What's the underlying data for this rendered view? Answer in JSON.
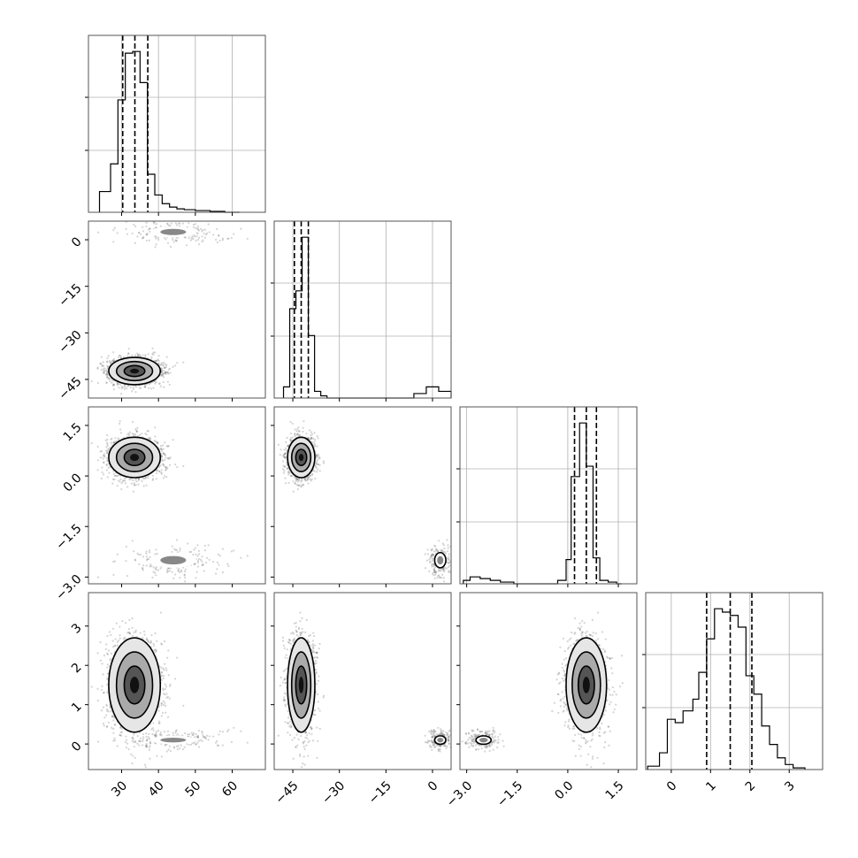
{
  "chart_data": {
    "type": "corner",
    "grid": true,
    "colors": {
      "ink": "#000000",
      "point": "#555555",
      "grid": "#b0b0b0"
    },
    "parameters": [
      {
        "ticks": [
          30,
          40,
          50,
          60
        ],
        "tick_labels": [
          "30",
          "40",
          "50",
          "60"
        ],
        "range": [
          21,
          69
        ],
        "quantiles": [
          30.3,
          33.6,
          37.1
        ]
      },
      {
        "ticks": [
          -45,
          -30,
          -15,
          0
        ],
        "tick_labels": [
          "−45",
          "−30",
          "−15",
          "0"
        ],
        "range": [
          -51,
          6
        ],
        "quantiles": [
          -44.5,
          -42.3,
          -40.0
        ]
      },
      {
        "ticks": [
          -3.0,
          -1.5,
          0.0,
          1.5
        ],
        "tick_labels": [
          "−3.0",
          "−1.5",
          "0.0",
          "1.5"
        ],
        "range": [
          -3.2,
          2.05
        ],
        "quantiles": [
          0.2,
          0.55,
          0.85
        ]
      },
      {
        "ticks": [
          0,
          1,
          2,
          3
        ],
        "tick_labels": [
          "0",
          "1",
          "2",
          "3"
        ],
        "range": [
          -0.65,
          3.85
        ],
        "quantiles": [
          0.9,
          1.5,
          2.05
        ]
      }
    ],
    "y_tick_labels": [
      null,
      [
        "−45",
        "−30",
        "−15",
        "0"
      ],
      [
        "−3.0",
        "−1.5",
        "0.0",
        "1.5"
      ],
      [
        "0",
        "1",
        "2",
        "3"
      ]
    ],
    "histograms": [
      {
        "bin_edges": [
          24,
          27,
          29,
          31,
          33,
          35,
          37,
          39,
          41,
          43,
          45,
          47,
          50,
          54,
          58,
          62
        ],
        "counts": [
          12,
          28,
          65,
          92,
          93,
          75,
          22,
          10,
          5,
          3,
          2,
          1.5,
          1,
          0.5,
          0
        ]
      },
      {
        "bin_edges": [
          -48,
          -46,
          -44,
          -42,
          -40,
          -38,
          -36,
          -34,
          -6,
          -2,
          2,
          6
        ],
        "counts": [
          5,
          40,
          48,
          72,
          28,
          3,
          1,
          0,
          2,
          5,
          3
        ]
      },
      {
        "bin_edges": [
          -3.1,
          -2.9,
          -2.6,
          -2.3,
          -2.0,
          -1.6,
          -0.3,
          -0.05,
          0.1,
          0.35,
          0.55,
          0.75,
          0.95,
          1.2,
          1.45,
          1.6
        ],
        "counts": [
          2,
          4,
          3,
          2,
          1,
          0,
          2,
          14,
          62,
          93,
          68,
          15,
          2,
          1,
          0
        ]
      },
      {
        "bin_edges": [
          -0.6,
          -0.3,
          -0.1,
          0.1,
          0.3,
          0.55,
          0.7,
          0.9,
          1.1,
          1.3,
          1.5,
          1.7,
          1.9,
          2.1,
          2.3,
          2.5,
          2.7,
          2.9,
          3.1,
          3.4
        ],
        "counts": [
          2,
          10,
          30,
          28,
          35,
          42,
          58,
          78,
          96,
          94,
          92,
          85,
          56,
          45,
          26,
          15,
          7,
          3,
          1
        ]
      }
    ],
    "modes": [
      {
        "weight": 0.9,
        "mean": [
          33.5,
          -42.3,
          0.55,
          1.5
        ],
        "sd": [
          3.5,
          2.2,
          0.3,
          0.6
        ]
      },
      {
        "weight": 0.1,
        "mean": [
          44.0,
          2.5,
          -2.5,
          0.1
        ],
        "sd": [
          7.0,
          2.0,
          0.25,
          0.12
        ]
      }
    ],
    "points_per_panel": 1800
  }
}
